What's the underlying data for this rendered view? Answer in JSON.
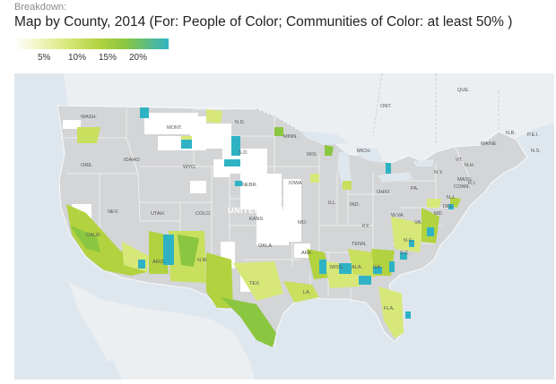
{
  "header": {
    "breakdown_label": "Breakdown:",
    "title": "Map by County, 2014 (For: People of Color; Communities of Color: at least 50% )"
  },
  "legend": {
    "ticks": [
      "5%",
      "10%",
      "15%",
      "20%"
    ],
    "colors": [
      "#ffffff",
      "#f1f6c6",
      "#d7e878",
      "#b2d23f",
      "#8bc640",
      "#2fb3c4"
    ]
  },
  "map": {
    "country_label": "UNITED STATES",
    "region_labels": {
      "wash": "WASH.",
      "ore": "ORE.",
      "idaho": "IDAHO",
      "mont": "MONT.",
      "wyo": "WYO.",
      "nev": "NEV.",
      "utah": "UTAH",
      "colo": "COLO.",
      "calif": "CALIF.",
      "ariz": "ARIZ.",
      "nm": "N.M.",
      "nd": "N.D.",
      "sd": "S.D.",
      "nebr": "NEBR.",
      "kans": "KANS.",
      "okla": "OKLA.",
      "tex": "TEX.",
      "minn": "MINN.",
      "iowa": "IOWA",
      "mo": "MO.",
      "ark": "ARK.",
      "la": "LA.",
      "wis": "WIS.",
      "mich": "MICH.",
      "ill": "ILL.",
      "ind": "IND.",
      "ohio": "OHIO",
      "ky": "KY.",
      "tenn": "TENN.",
      "miss": "MISS.",
      "ala": "ALA.",
      "ga": "GA.",
      "fla": "FLA.",
      "sc": "S.C.",
      "nc": "N.C.",
      "va": "VA.",
      "wva": "W.VA.",
      "pa": "PA.",
      "ny": "N.Y.",
      "vt": "VT.",
      "nh": "N.H.",
      "maine": "MAINE",
      "mass": "MASS.",
      "conn": "CONN.",
      "ri": "R.I.",
      "nj": "N.J.",
      "del": "DEL.",
      "md": "MD.",
      "ont": "ONT.",
      "que": "QUE.",
      "nb": "N.B.",
      "pei": "P.E.I.",
      "ns": "N.S."
    }
  }
}
